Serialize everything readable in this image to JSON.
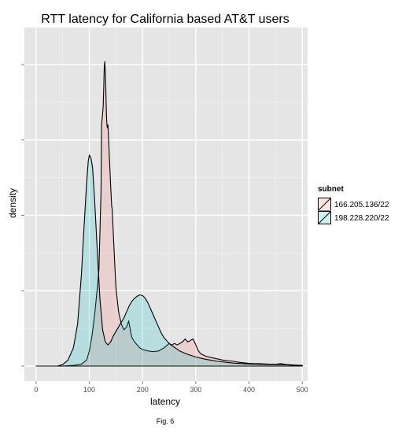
{
  "chart_data": {
    "type": "area",
    "title": "RTT latency for California based AT&T users",
    "xlabel": "latency",
    "ylabel": "density",
    "caption": "Fig. 6",
    "xlim": [
      -22,
      510
    ],
    "ylim": [
      0,
      1
    ],
    "x_ticks": [
      0,
      100,
      200,
      300,
      400,
      500
    ],
    "x_tick_labels": [
      "0",
      "100",
      "200",
      "300",
      "400",
      "500"
    ],
    "y_ticks": [
      0,
      0.25,
      0.5,
      0.75,
      1.0
    ],
    "y_tick_labels": [
      "",
      "",
      "",
      "",
      ""
    ],
    "grid": true,
    "legend": {
      "title": "subnet",
      "position": "right"
    },
    "series": [
      {
        "name": "166.205.136/22",
        "fill": "#f8766d",
        "points": [
          [
            0,
            0
          ],
          [
            50,
            0
          ],
          [
            70,
            0.002
          ],
          [
            85,
            0.006
          ],
          [
            95,
            0.02
          ],
          [
            100,
            0.05
          ],
          [
            105,
            0.1
          ],
          [
            110,
            0.17
          ],
          [
            115,
            0.26
          ],
          [
            118,
            0.32
          ],
          [
            120,
            0.45
          ],
          [
            122,
            0.58
          ],
          [
            123,
            0.8
          ],
          [
            124,
            0.82
          ],
          [
            126,
            0.86
          ],
          [
            127,
            0.92
          ],
          [
            128,
            0.99
          ],
          [
            129,
            1.01
          ],
          [
            130,
            0.98
          ],
          [
            131,
            0.92
          ],
          [
            132,
            0.84
          ],
          [
            133,
            0.8
          ],
          [
            134,
            0.79
          ],
          [
            135,
            0.8
          ],
          [
            137,
            0.72
          ],
          [
            140,
            0.6
          ],
          [
            142,
            0.53
          ],
          [
            143,
            0.52
          ],
          [
            145,
            0.44
          ],
          [
            148,
            0.33
          ],
          [
            150,
            0.26
          ],
          [
            155,
            0.18
          ],
          [
            160,
            0.14
          ],
          [
            165,
            0.12
          ],
          [
            170,
            0.13
          ],
          [
            172,
            0.14
          ],
          [
            174,
            0.15
          ],
          [
            176,
            0.13
          ],
          [
            178,
            0.11
          ],
          [
            180,
            0.095
          ],
          [
            185,
            0.08
          ],
          [
            190,
            0.07
          ],
          [
            195,
            0.06
          ],
          [
            200,
            0.055
          ],
          [
            210,
            0.05
          ],
          [
            220,
            0.048
          ],
          [
            230,
            0.05
          ],
          [
            240,
            0.06
          ],
          [
            250,
            0.075
          ],
          [
            255,
            0.07
          ],
          [
            260,
            0.075
          ],
          [
            265,
            0.07
          ],
          [
            270,
            0.075
          ],
          [
            275,
            0.08
          ],
          [
            280,
            0.09
          ],
          [
            285,
            0.08
          ],
          [
            290,
            0.085
          ],
          [
            295,
            0.09
          ],
          [
            300,
            0.07
          ],
          [
            305,
            0.05
          ],
          [
            310,
            0.04
          ],
          [
            320,
            0.032
          ],
          [
            330,
            0.028
          ],
          [
            340,
            0.024
          ],
          [
            350,
            0.02
          ],
          [
            360,
            0.018
          ],
          [
            370,
            0.016
          ],
          [
            380,
            0.013
          ],
          [
            390,
            0.011
          ],
          [
            400,
            0.009
          ],
          [
            410,
            0.008
          ],
          [
            420,
            0.008
          ],
          [
            430,
            0.007
          ],
          [
            440,
            0.006
          ],
          [
            450,
            0.006
          ],
          [
            460,
            0.008
          ],
          [
            470,
            0.005
          ],
          [
            480,
            0.004
          ],
          [
            490,
            0.003
          ],
          [
            500,
            0.002
          ]
        ]
      },
      {
        "name": "198.228.220/22",
        "fill": "#00bfc4",
        "points": [
          [
            0,
            0
          ],
          [
            40,
            0
          ],
          [
            50,
            0.005
          ],
          [
            60,
            0.02
          ],
          [
            70,
            0.06
          ],
          [
            78,
            0.14
          ],
          [
            85,
            0.3
          ],
          [
            90,
            0.46
          ],
          [
            95,
            0.61
          ],
          [
            98,
            0.68
          ],
          [
            100,
            0.7
          ],
          [
            103,
            0.69
          ],
          [
            106,
            0.66
          ],
          [
            110,
            0.55
          ],
          [
            115,
            0.38
          ],
          [
            120,
            0.22
          ],
          [
            125,
            0.12
          ],
          [
            130,
            0.08
          ],
          [
            135,
            0.07
          ],
          [
            140,
            0.08
          ],
          [
            145,
            0.1
          ],
          [
            150,
            0.115
          ],
          [
            155,
            0.13
          ],
          [
            160,
            0.145
          ],
          [
            165,
            0.16
          ],
          [
            170,
            0.18
          ],
          [
            175,
            0.2
          ],
          [
            180,
            0.215
          ],
          [
            185,
            0.225
          ],
          [
            190,
            0.232
          ],
          [
            195,
            0.236
          ],
          [
            200,
            0.234
          ],
          [
            205,
            0.225
          ],
          [
            210,
            0.21
          ],
          [
            215,
            0.19
          ],
          [
            220,
            0.17
          ],
          [
            225,
            0.15
          ],
          [
            230,
            0.13
          ],
          [
            235,
            0.11
          ],
          [
            240,
            0.095
          ],
          [
            245,
            0.085
          ],
          [
            250,
            0.075
          ],
          [
            255,
            0.068
          ],
          [
            260,
            0.062
          ],
          [
            265,
            0.056
          ],
          [
            270,
            0.05
          ],
          [
            280,
            0.042
          ],
          [
            290,
            0.036
          ],
          [
            300,
            0.03
          ],
          [
            310,
            0.026
          ],
          [
            320,
            0.022
          ],
          [
            330,
            0.019
          ],
          [
            340,
            0.016
          ],
          [
            350,
            0.014
          ],
          [
            360,
            0.012
          ],
          [
            370,
            0.01
          ],
          [
            380,
            0.009
          ],
          [
            390,
            0.008
          ],
          [
            400,
            0.007
          ],
          [
            420,
            0.006
          ],
          [
            440,
            0.005
          ],
          [
            460,
            0.005
          ],
          [
            480,
            0.003
          ],
          [
            500,
            0.002
          ]
        ]
      }
    ]
  }
}
